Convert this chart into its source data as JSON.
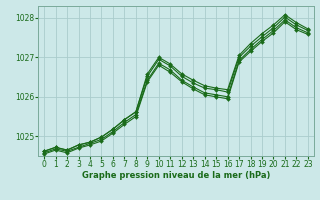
{
  "bg_color": "#cce8e8",
  "grid_color": "#aacccc",
  "line_color": "#1a6b1a",
  "xlabel": "Graphe pression niveau de la mer (hPa)",
  "ylim": [
    1024.5,
    1028.3
  ],
  "xlim": [
    -0.5,
    23.5
  ],
  "yticks": [
    1025,
    1026,
    1027,
    1028
  ],
  "xticks": [
    0,
    1,
    2,
    3,
    4,
    5,
    6,
    7,
    8,
    9,
    10,
    11,
    12,
    13,
    14,
    15,
    16,
    17,
    18,
    19,
    20,
    21,
    22,
    23
  ],
  "series": [
    [
      1024.62,
      1024.72,
      1024.65,
      1024.78,
      1024.85,
      1024.98,
      1025.18,
      1025.42,
      1025.62,
      1026.58,
      1027.0,
      1026.83,
      1026.58,
      1026.42,
      1026.28,
      1026.22,
      1026.18,
      1027.05,
      1027.35,
      1027.6,
      1027.82,
      1028.08,
      1027.88,
      1027.72
    ],
    [
      1024.62,
      1024.72,
      1024.65,
      1024.78,
      1024.85,
      1024.98,
      1025.18,
      1025.42,
      1025.62,
      1026.52,
      1026.95,
      1026.78,
      1026.52,
      1026.35,
      1026.22,
      1026.18,
      1026.12,
      1027.0,
      1027.28,
      1027.52,
      1027.75,
      1028.02,
      1027.82,
      1027.68
    ],
    [
      1024.58,
      1024.68,
      1024.62,
      1024.72,
      1024.82,
      1024.92,
      1025.12,
      1025.35,
      1025.55,
      1026.42,
      1026.85,
      1026.68,
      1026.42,
      1026.25,
      1026.1,
      1026.05,
      1026.0,
      1026.92,
      1027.2,
      1027.45,
      1027.68,
      1027.95,
      1027.75,
      1027.62
    ],
    [
      1024.55,
      1024.65,
      1024.58,
      1024.7,
      1024.78,
      1024.88,
      1025.08,
      1025.3,
      1025.5,
      1026.38,
      1026.8,
      1026.62,
      1026.38,
      1026.2,
      1026.05,
      1026.0,
      1025.95,
      1026.88,
      1027.15,
      1027.4,
      1027.62,
      1027.9,
      1027.7,
      1027.58
    ]
  ]
}
